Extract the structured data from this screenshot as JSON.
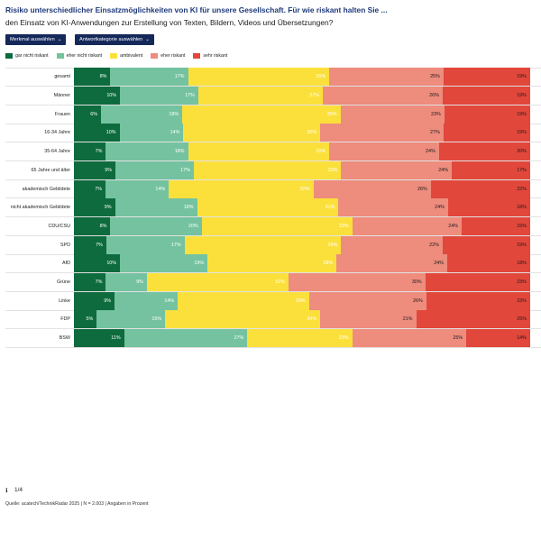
{
  "header": {
    "title": "Risiko unterschiedlicher Einsatzmöglichkeiten von KI für unsere Gesellschaft. Für wie riskant halten Sie ...",
    "subtitle": "den Einsatz von KI-Anwendungen zur Erstellung von Texten, Bildern, Videos und Übersetzungen?"
  },
  "controls": {
    "feature_select_label": "Merkmal auswählen",
    "answer_select_label": "Antwortkategorie auswählen",
    "chevron_icon": "chevron-down-icon"
  },
  "footer": {
    "info_icon": "info-icon",
    "info_glyph": "ℹ",
    "page_indicator": "1/4",
    "source": "Quelle: acatech/TechnikRadar 2025 | N = 2.003 | Angaben in Prozent"
  },
  "chart_data": {
    "type": "bar",
    "orientation": "horizontal",
    "stacked": true,
    "unit": "%",
    "categories": [
      "gesamt",
      "Männer",
      "Frauen",
      "16-34 Jahre",
      "35-64 Jahre",
      "65 Jahre und älter",
      "akademisch Gebildete",
      "nicht akademisch Gebildete",
      "CDU/CSU",
      "SPD",
      "AfD",
      "Grüne",
      "Linke",
      "FDP",
      "BSW"
    ],
    "series": [
      {
        "name": "gar nicht riskant",
        "color": "#0d6b3d",
        "label_color": "#ffffff",
        "values": [
          8,
          10,
          6,
          10,
          7,
          9,
          7,
          9,
          8,
          7,
          10,
          7,
          9,
          5,
          11
        ]
      },
      {
        "name": "eher nicht riskant",
        "color": "#74c2a0",
        "label_color": "#ffffff",
        "values": [
          17,
          17,
          18,
          14,
          18,
          17,
          14,
          18,
          20,
          17,
          19,
          9,
          14,
          15,
          27
        ]
      },
      {
        "name": "ambivalent",
        "color": "#fbe03c",
        "label_color": "#ffffff",
        "values": [
          31,
          27,
          35,
          30,
          31,
          32,
          32,
          31,
          33,
          34,
          28,
          31,
          29,
          34,
          23
        ]
      },
      {
        "name": "eher riskant",
        "color": "#ee8c7d",
        "label_color": "#1a1a1a",
        "values": [
          25,
          26,
          23,
          27,
          24,
          24,
          26,
          24,
          24,
          22,
          24,
          30,
          26,
          21,
          25
        ]
      },
      {
        "name": "sehr riskant",
        "color": "#e2473b",
        "label_color": "#1a1a1a",
        "values": [
          19,
          19,
          19,
          19,
          20,
          17,
          22,
          18,
          15,
          19,
          18,
          23,
          23,
          25,
          14
        ]
      }
    ],
    "xlim": [
      0,
      100
    ],
    "title": "Risiko unterschiedlicher Einsatzmöglichkeiten von KI für unsere Gesellschaft. Für wie riskant halten Sie ...",
    "legend_position": "top-left"
  }
}
